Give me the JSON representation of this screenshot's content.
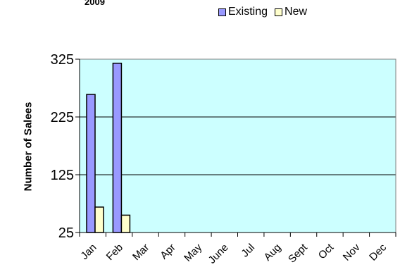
{
  "chart_data": {
    "type": "bar",
    "title": "2009",
    "ylabel": "Number of Salees",
    "xlabel": "",
    "categories": [
      "Jan",
      "Feb",
      "Mar",
      "Apr",
      "May",
      "June",
      "Jul",
      "Aug",
      "Sept",
      "Oct",
      "Nov",
      "Dec"
    ],
    "series": [
      {
        "name": "Existing",
        "color": "#9999FF",
        "values": [
          264,
          318,
          null,
          null,
          null,
          null,
          null,
          null,
          null,
          null,
          null,
          null
        ]
      },
      {
        "name": "New",
        "color": "#FFFFCC",
        "values": [
          69,
          55,
          null,
          null,
          null,
          null,
          null,
          null,
          null,
          null,
          null,
          null
        ]
      }
    ],
    "ylim": [
      25,
      325
    ],
    "yticks": [
      25,
      125,
      225,
      325
    ],
    "grid": true,
    "legend_position": "top",
    "plot_background": "#CCFFFF",
    "gridline_color": "#000000"
  }
}
